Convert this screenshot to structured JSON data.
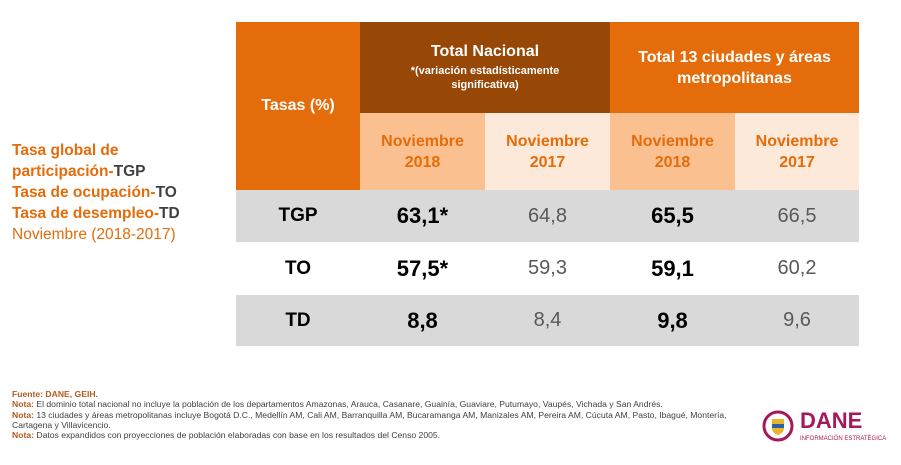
{
  "side": {
    "l1": "Tasa global de",
    "l2a": "participación-",
    "l2b": "TGP",
    "l3a": "Tasa de ocupación-",
    "l3b": "TO",
    "l4a": "Tasa de desempleo-",
    "l4b": "TD",
    "l5": "Noviembre (2018-2017)"
  },
  "table": {
    "corner": "Tasas (%)",
    "national": {
      "title": "Total Nacional",
      "note": "*(variación estadísticamente significativa)"
    },
    "cities": {
      "title": "Total 13 ciudades y áreas metropolitanas"
    },
    "periods": [
      "Noviembre 2018",
      "Noviembre 2017",
      "Noviembre 2018",
      "Noviembre 2017"
    ],
    "rows": [
      {
        "label": "TGP",
        "values": [
          "63,1*",
          "64,8",
          "65,5",
          "66,5"
        ]
      },
      {
        "label": "TO",
        "values": [
          "57,5*",
          "59,3",
          "59,1",
          "60,2"
        ]
      },
      {
        "label": "TD",
        "values": [
          "8,8",
          "8,4",
          "9,8",
          "9,6"
        ]
      }
    ]
  },
  "footer": {
    "source_label": "Fuente: DANE, GEIH.",
    "notes": [
      {
        "label": "Nota:",
        "text": " El dominio total nacional no incluye la población de los departamentos Amazonas, Arauca, Casanare, Guainía, Guaviare, Putumayo, Vaupés, Vichada y San Andrés."
      },
      {
        "label": "Nota:",
        "text": " 13 ciudades y áreas metropolitanas incluye Bogotá D.C., Medellín AM, Cali AM, Barranquilla AM, Bucaramanga AM, Manizales AM, Pereira AM, Cúcuta AM, Pasto, Ibagué, Montería, Cartagena y Villavicencio."
      },
      {
        "label": "Nota:",
        "text": " Datos expandidos con proyecciones de población elaboradas con base en los resultados del Censo 2005."
      }
    ]
  },
  "logo": {
    "name": "DANE",
    "tagline": "INFORMACIÓN ESTRATÉGICA"
  }
}
